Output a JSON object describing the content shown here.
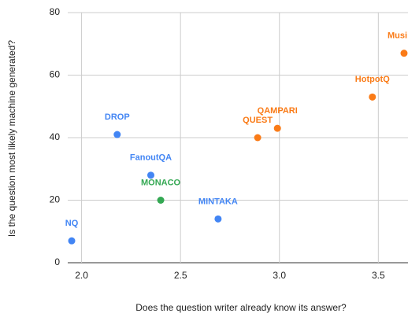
{
  "chart_data": {
    "type": "scatter",
    "x_label": "Does the question writer already know its answer?",
    "y_label": "Is the question most likely machine generated?",
    "xlim": [
      1.93,
      3.65
    ],
    "ylim": [
      0,
      80
    ],
    "xticks": [
      {
        "value": 2.0,
        "label": "2.0"
      },
      {
        "value": 2.5,
        "label": "2.5"
      },
      {
        "value": 3.0,
        "label": "3.0"
      },
      {
        "value": 3.5,
        "label": "3.5"
      }
    ],
    "yticks": [
      0,
      20,
      40,
      60,
      80
    ],
    "grid": true,
    "points": [
      {
        "label": "NQ",
        "x": 1.95,
        "y": 7,
        "color": "#4285f4"
      },
      {
        "label": "DROP",
        "x": 2.18,
        "y": 41,
        "color": "#4285f4"
      },
      {
        "label": "FanoutQA",
        "x": 2.35,
        "y": 28,
        "color": "#4285f4"
      },
      {
        "label": "MONACO",
        "x": 2.4,
        "y": 20,
        "color": "#34a853"
      },
      {
        "label": "MINTAKA",
        "x": 2.69,
        "y": 14,
        "color": "#4285f4"
      },
      {
        "label": "QUEST",
        "x": 2.89,
        "y": 40,
        "color": "#fa7b17"
      },
      {
        "label": "QAMPARI",
        "x": 2.99,
        "y": 43,
        "color": "#fa7b17"
      },
      {
        "label": "HotpotQ",
        "x": 3.47,
        "y": 53,
        "color": "#fa7b17"
      },
      {
        "label": "Musi",
        "x": 3.63,
        "y": 67,
        "color": "#fa7b17"
      }
    ]
  }
}
